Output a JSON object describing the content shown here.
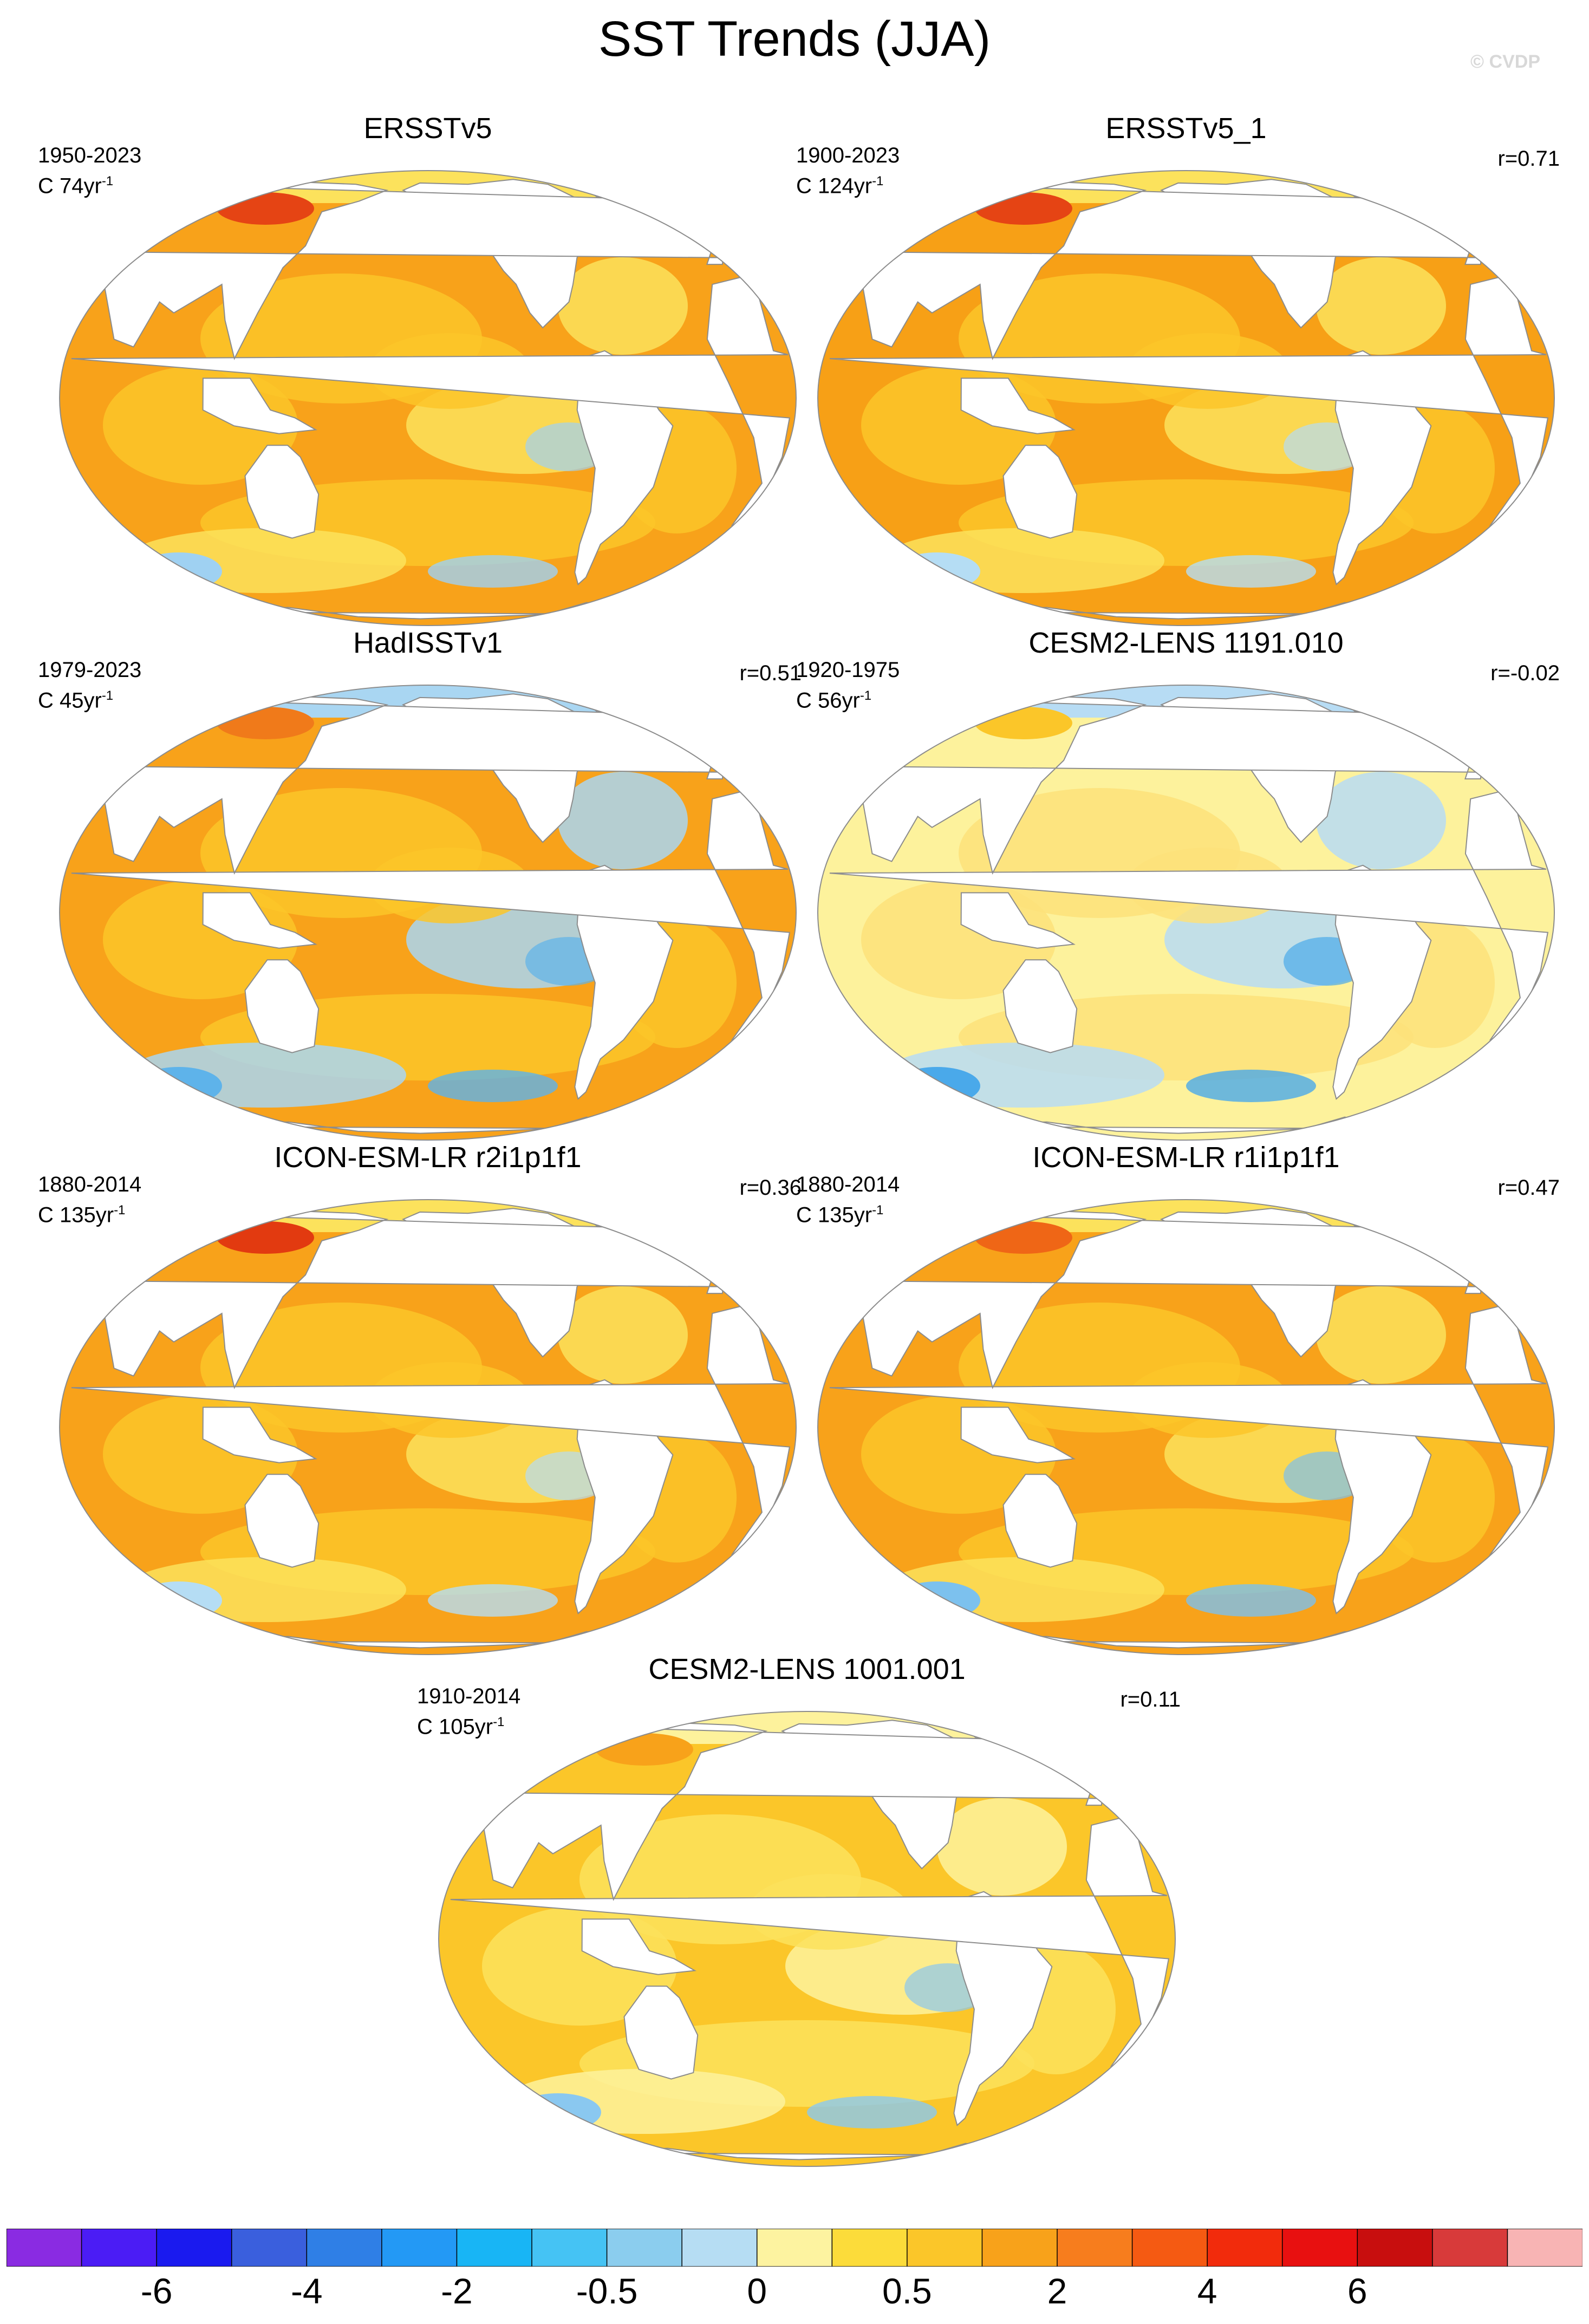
{
  "page_title": "SST Trends (JJA)",
  "credit": "© CVDP",
  "panels": [
    {
      "title": "ERSSTv5",
      "period": "1950-2023",
      "trend_prefix": "C 74yr",
      "trend_exp": "-1",
      "corr": "",
      "palette": [
        "#f8a21a",
        "#fbc629",
        "#fce25c"
      ],
      "highlight": "#e54414",
      "cool": "#9fd1f2"
    },
    {
      "title": "ERSSTv5_1",
      "period": "1900-2023",
      "trend_prefix": "C 124yr",
      "trend_exp": "-1",
      "corr": "r=0.71",
      "palette": [
        "#f7a016",
        "#fbc629",
        "#fce25c"
      ],
      "highlight": "#e54414",
      "cool": "#b5ddf4"
    },
    {
      "title": "HadISSTv1",
      "period": "1979-2023",
      "trend_prefix": "C 45yr",
      "trend_exp": "-1",
      "corr": "r=0.51",
      "palette": [
        "#f8a21a",
        "#fbc629",
        "#a9d6f2"
      ],
      "highlight": "#f07a1a",
      "cool": "#5eb3ea"
    },
    {
      "title": "CESM2-LENS 1191.010",
      "period": "1920-1975",
      "trend_prefix": "C 56yr",
      "trend_exp": "-1",
      "corr": "r=-0.02",
      "palette": [
        "#fdf29c",
        "#fde27a",
        "#b7dcf4"
      ],
      "highlight": "#fbc629",
      "cool": "#4aa9ea"
    },
    {
      "title": "ICON-ESM-LR r2i1p1f1",
      "period": "1880-2014",
      "trend_prefix": "C 135yr",
      "trend_exp": "-1",
      "corr": "r=0.36",
      "palette": [
        "#f8a21a",
        "#fbc629",
        "#fce25c"
      ],
      "highlight": "#e23a10",
      "cool": "#b5ddf4"
    },
    {
      "title": "ICON-ESM-LR r1i1p1f1",
      "period": "1880-2014",
      "trend_prefix": "C 135yr",
      "trend_exp": "-1",
      "corr": "r=0.47",
      "palette": [
        "#f8a21a",
        "#fbc629",
        "#fce25c"
      ],
      "highlight": "#ef6616",
      "cool": "#7cc1ee"
    },
    {
      "title": "CESM2-LENS 1001.001",
      "period": "1910-2014",
      "trend_prefix": "C 105yr",
      "trend_exp": "-1",
      "corr": "r=0.11",
      "palette": [
        "#fbc629",
        "#fce25c",
        "#fdf29c"
      ],
      "highlight": "#f8a21a",
      "cool": "#8ac8f0"
    }
  ],
  "colorbar": {
    "colors": [
      "#8a2be2",
      "#4b1cf5",
      "#1a1aef",
      "#3a5fdd",
      "#2f7fe6",
      "#2399f5",
      "#18b5f5",
      "#45c3f4",
      "#8bcdee",
      "#b6ddf3",
      "#fdf3a0",
      "#fcdc3a",
      "#fbc629",
      "#f8a21a",
      "#f77d1d",
      "#f55a12",
      "#f22b0c",
      "#e81010",
      "#c80e0e",
      "#d83a3a",
      "#f8b4b4"
    ],
    "labels": [
      "-6",
      "-4",
      "-2",
      "-0.5",
      "0",
      "0.5",
      "2",
      "4",
      "6"
    ],
    "label_boundaries": [
      2,
      4,
      6,
      8,
      10,
      12,
      14,
      16,
      18
    ]
  }
}
